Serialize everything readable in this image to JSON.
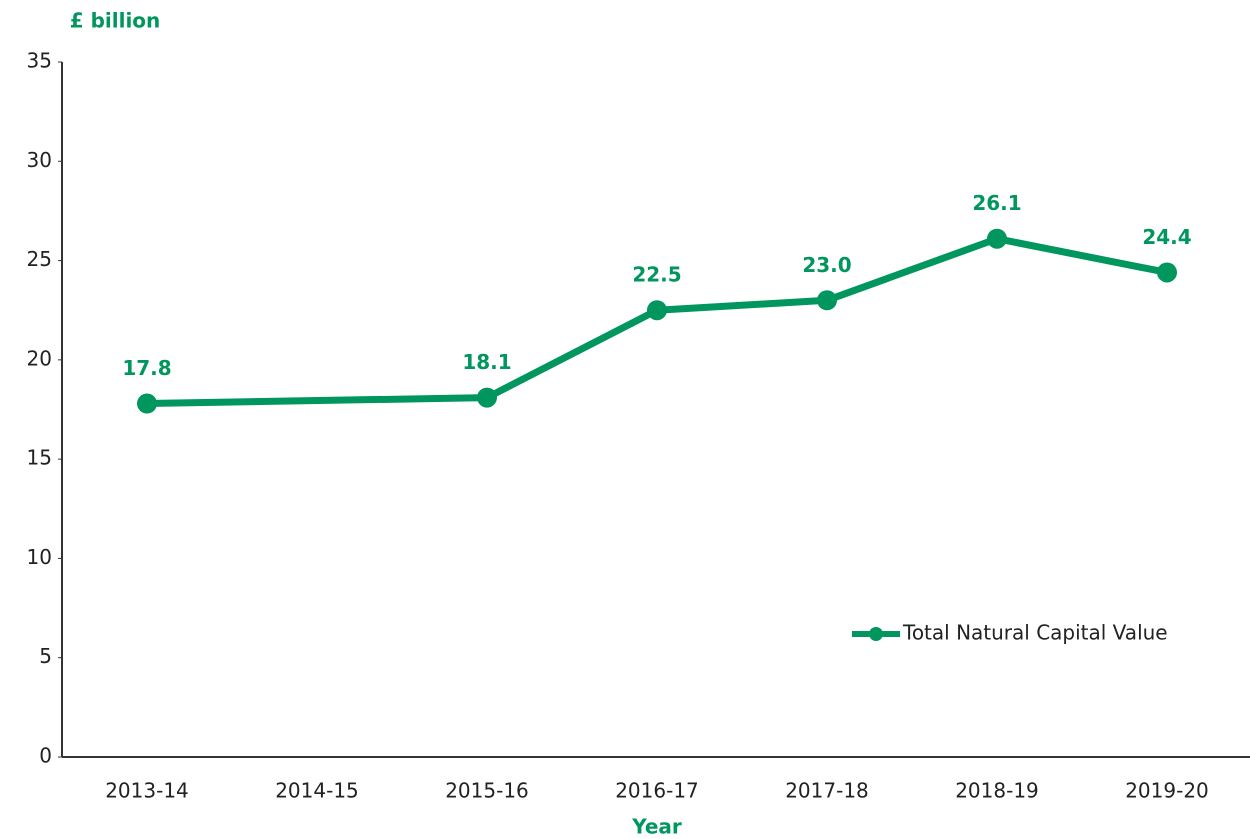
{
  "chart_data": {
    "type": "line",
    "y_label": "£ billion",
    "x_label": "Year",
    "categories": [
      "2013-14",
      "2014-15",
      "2015-16",
      "2016-17",
      "2017-18",
      "2018-19",
      "2019-20"
    ],
    "series": [
      {
        "name": "Total Natural Capital Value",
        "color": "#00965e",
        "values": [
          17.8,
          null,
          18.1,
          22.5,
          23.0,
          26.1,
          24.4
        ],
        "value_labels": [
          "17.8",
          null,
          "18.1",
          "22.5",
          "23.0",
          "26.1",
          "24.4"
        ]
      }
    ],
    "ylim": [
      0,
      35
    ],
    "yticks": [
      0,
      5,
      10,
      15,
      20,
      25,
      30,
      35
    ],
    "grid": false,
    "connect_gaps": true,
    "legend": "lower right"
  }
}
